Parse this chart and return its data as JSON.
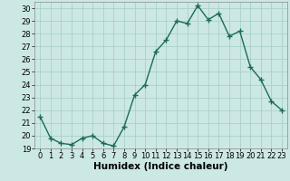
{
  "x": [
    0,
    1,
    2,
    3,
    4,
    5,
    6,
    7,
    8,
    9,
    10,
    11,
    12,
    13,
    14,
    15,
    16,
    17,
    18,
    19,
    20,
    21,
    22,
    23
  ],
  "y": [
    21.5,
    19.8,
    19.4,
    19.3,
    19.8,
    20.0,
    19.4,
    19.2,
    20.7,
    23.2,
    24.0,
    26.6,
    27.5,
    29.0,
    28.8,
    30.2,
    29.1,
    29.6,
    27.8,
    28.2,
    25.4,
    24.4,
    22.7,
    22.0
  ],
  "line_color": "#1a6b5a",
  "marker": "+",
  "marker_size": 4,
  "marker_linewidth": 1.0,
  "bg_color": "#cce8e4",
  "grid_color": "#aacfcb",
  "xlabel": "Humidex (Indice chaleur)",
  "xlim": [
    -0.5,
    23.5
  ],
  "ylim": [
    19,
    30.5
  ],
  "yticks": [
    19,
    20,
    21,
    22,
    23,
    24,
    25,
    26,
    27,
    28,
    29,
    30
  ],
  "xticks": [
    0,
    1,
    2,
    3,
    4,
    5,
    6,
    7,
    8,
    9,
    10,
    11,
    12,
    13,
    14,
    15,
    16,
    17,
    18,
    19,
    20,
    21,
    22,
    23
  ],
  "xlabel_fontsize": 7.5,
  "tick_fontsize": 6,
  "linewidth": 1.0
}
